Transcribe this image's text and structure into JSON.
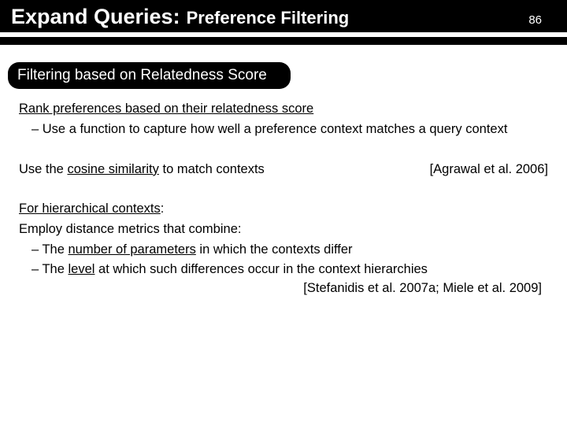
{
  "header": {
    "title_main": "Expand Queries:",
    "title_sub": "Preference Filtering",
    "slide_number": "86"
  },
  "section_heading": "Filtering based on Relatedness Score",
  "block1": {
    "lead": "Rank preferences based on their relatedness score",
    "bullet1": "Use a function to capture how well a preference context matches a query context"
  },
  "block2": {
    "text_pre": "Use the ",
    "text_em": "cosine similarity",
    "text_post": " to match contexts",
    "citation": "[Agrawal et al. 2006]"
  },
  "block3": {
    "lead": "For hierarchical contexts",
    "line2": "Employ distance metrics that combine:",
    "bullet1_pre": "The ",
    "bullet1_em": "number of parameters",
    "bullet1_post": " in which the contexts differ",
    "bullet2_pre": "The ",
    "bullet2_em": "level",
    "bullet2_post": " at which such differences occur in the context hierarchies",
    "citation": "[Stefanidis et al. 2007a; Miele et al. 2009]"
  },
  "colors": {
    "bg": "#ffffff",
    "fg": "#000000",
    "header_bg": "#000000",
    "header_fg": "#ffffff"
  },
  "fonts": {
    "title_main_size": 27,
    "title_sub_size": 22,
    "section_size": 19,
    "body_size": 16.5
  }
}
